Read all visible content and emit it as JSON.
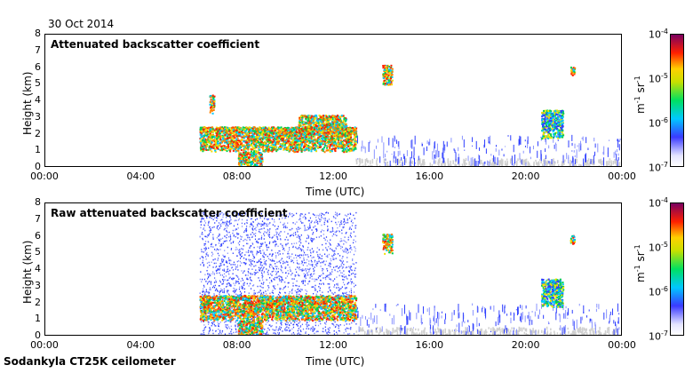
{
  "date": "30 Oct 2014",
  "footer": "Sodankyla CT25K ceilometer",
  "colors": {
    "blue": "#2f3fff",
    "cyan": "#00c8ff",
    "green": "#00d050",
    "yellow": "#f0e000",
    "red": "#ff2000",
    "grey": "#cfcfcf"
  },
  "chart_data": [
    {
      "type": "heatmap",
      "title": "Attenuated backscatter coefficient",
      "xlabel": "Time (UTC)",
      "ylabel": "Height (km)",
      "x_ticks": [
        "00:00",
        "04:00",
        "08:00",
        "12:00",
        "16:00",
        "20:00",
        "00:00"
      ],
      "y_ticks": [
        "0",
        "1",
        "2",
        "3",
        "4",
        "5",
        "6",
        "7",
        "8"
      ],
      "xlim": [
        0,
        24
      ],
      "ylim": [
        0,
        8
      ],
      "colorbar": {
        "label": "m-1 sr-1",
        "ticks": [
          "10-7",
          "10-6",
          "10-5",
          "10-4"
        ],
        "min": 1e-07,
        "max": 0.0001,
        "scale": "log"
      },
      "features": [
        {
          "t_start": 6.4,
          "t_end": 12.9,
          "z_low": 1.0,
          "z_high": 2.5,
          "level": "high"
        },
        {
          "t_start": 8.0,
          "t_end": 9.0,
          "z_low": 0.0,
          "z_high": 1.0,
          "level": "high"
        },
        {
          "t_start": 10.5,
          "t_end": 12.5,
          "z_low": 2.0,
          "z_high": 3.2,
          "level": "high"
        },
        {
          "t_start": 14.0,
          "t_end": 14.4,
          "z_low": 5.0,
          "z_high": 6.2,
          "level": "high"
        },
        {
          "t_start": 20.6,
          "t_end": 21.5,
          "z_low": 1.8,
          "z_high": 3.5,
          "level": "medium"
        },
        {
          "t_start": 21.8,
          "t_end": 22.0,
          "z_low": 5.6,
          "z_high": 6.1,
          "level": "high"
        },
        {
          "t_start": 6.8,
          "t_end": 7.0,
          "z_low": 3.3,
          "z_high": 4.4,
          "level": "high"
        }
      ]
    },
    {
      "type": "heatmap",
      "title": "Raw attenuated backscatter coefficient",
      "xlabel": "Time (UTC)",
      "ylabel": "Height (km)",
      "x_ticks": [
        "00:00",
        "04:00",
        "08:00",
        "12:00",
        "16:00",
        "20:00",
        "00:00"
      ],
      "y_ticks": [
        "0",
        "1",
        "2",
        "3",
        "4",
        "5",
        "6",
        "7",
        "8"
      ],
      "xlim": [
        0,
        24
      ],
      "ylim": [
        0,
        8
      ],
      "colorbar": {
        "label": "m-1 sr-1",
        "ticks": [
          "10-7",
          "10-6",
          "10-5",
          "10-4"
        ],
        "min": 1e-07,
        "max": 0.0001,
        "scale": "log"
      },
      "features": [
        {
          "t_start": 6.4,
          "t_end": 12.9,
          "z_low": 0.0,
          "z_high": 7.5,
          "level": "noise"
        },
        {
          "t_start": 6.4,
          "t_end": 12.9,
          "z_low": 1.0,
          "z_high": 2.5,
          "level": "high"
        },
        {
          "t_start": 8.0,
          "t_end": 9.0,
          "z_low": 0.0,
          "z_high": 1.0,
          "level": "high"
        },
        {
          "t_start": 14.0,
          "t_end": 14.4,
          "z_low": 5.0,
          "z_high": 6.2,
          "level": "high"
        },
        {
          "t_start": 20.6,
          "t_end": 21.5,
          "z_low": 1.8,
          "z_high": 3.5,
          "level": "medium"
        },
        {
          "t_start": 21.8,
          "t_end": 22.0,
          "z_low": 5.6,
          "z_high": 6.1,
          "level": "high"
        }
      ]
    }
  ]
}
